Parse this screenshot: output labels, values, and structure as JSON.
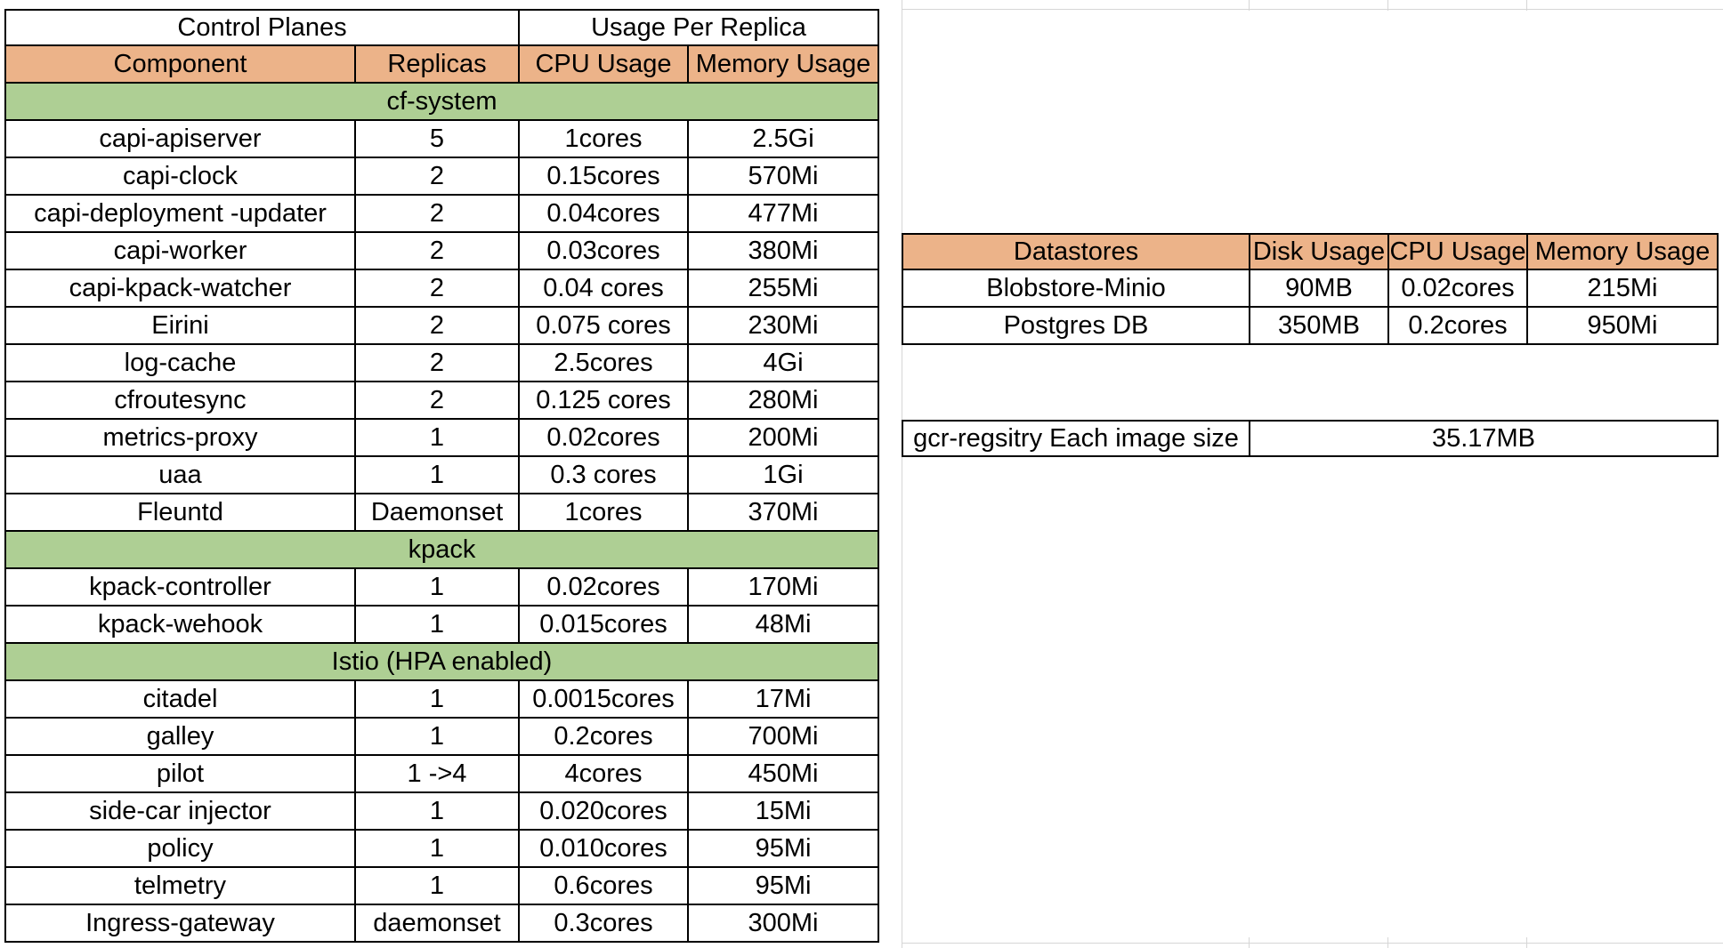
{
  "colors": {
    "header_fill": "#ecb389",
    "section_fill": "#aecf94",
    "border": "#000000",
    "gridline": "#d6d6d6"
  },
  "control_planes_table": {
    "title": "Control Planes",
    "usage_title": "Usage Per Replica",
    "columns": [
      "Component",
      "Replicas",
      "CPU Usage",
      "Memory Usage"
    ],
    "rows": [
      {
        "type": "section",
        "label": "cf-system"
      },
      {
        "type": "data",
        "cells": [
          "capi-apiserver",
          "5",
          "1cores",
          "2.5Gi"
        ]
      },
      {
        "type": "data",
        "cells": [
          "capi-clock",
          "2",
          "0.15cores",
          "570Mi"
        ]
      },
      {
        "type": "data",
        "cells": [
          "capi-deployment -updater",
          "2",
          "0.04cores",
          "477Mi"
        ]
      },
      {
        "type": "data",
        "cells": [
          "capi-worker",
          "2",
          "0.03cores",
          "380Mi"
        ]
      },
      {
        "type": "data",
        "cells": [
          "capi-kpack-watcher",
          "2",
          "0.04 cores",
          "255Mi"
        ]
      },
      {
        "type": "data",
        "cells": [
          "Eirini",
          "2",
          "0.075 cores",
          "230Mi"
        ]
      },
      {
        "type": "data",
        "cells": [
          "log-cache",
          "2",
          "2.5cores",
          "4Gi"
        ]
      },
      {
        "type": "data",
        "cells": [
          "cfroutesync",
          "2",
          "0.125 cores",
          "280Mi"
        ]
      },
      {
        "type": "data",
        "cells": [
          "metrics-proxy",
          "1",
          "0.02cores",
          "200Mi"
        ]
      },
      {
        "type": "data",
        "cells": [
          "uaa",
          "1",
          "0.3 cores",
          "1Gi"
        ]
      },
      {
        "type": "data",
        "cells": [
          "Fleuntd",
          "Daemonset",
          "1cores",
          "370Mi"
        ]
      },
      {
        "type": "section",
        "label": "kpack"
      },
      {
        "type": "data",
        "cells": [
          "kpack-controller",
          "1",
          "0.02cores",
          "170Mi"
        ]
      },
      {
        "type": "data",
        "cells": [
          "kpack-wehook",
          "1",
          "0.015cores",
          "48Mi"
        ]
      },
      {
        "type": "section",
        "label": "Istio (HPA enabled)"
      },
      {
        "type": "data",
        "cells": [
          "citadel",
          "1",
          "0.0015cores",
          "17Mi"
        ]
      },
      {
        "type": "data",
        "cells": [
          "galley",
          "1",
          "0.2cores",
          "700Mi"
        ]
      },
      {
        "type": "data",
        "cells": [
          "pilot",
          "1 ->4",
          "4cores",
          "450Mi"
        ]
      },
      {
        "type": "data",
        "cells": [
          "side-car injector",
          "1",
          "0.020cores",
          "15Mi"
        ]
      },
      {
        "type": "data",
        "cells": [
          "policy",
          "1",
          "0.010cores",
          "95Mi"
        ]
      },
      {
        "type": "data",
        "cells": [
          "telmetry",
          "1",
          "0.6cores",
          "95Mi"
        ]
      },
      {
        "type": "data",
        "cells": [
          "Ingress-gateway",
          "daemonset",
          "0.3cores",
          "300Mi"
        ]
      }
    ]
  },
  "datastores_table": {
    "columns": [
      "Datastores",
      "Disk Usage",
      "CPU Usage",
      "Memory Usage"
    ],
    "rows": [
      [
        "Blobstore-Minio",
        "90MB",
        "0.02cores",
        "215Mi"
      ],
      [
        "Postgres DB",
        "350MB",
        "0.2cores",
        "950Mi"
      ]
    ]
  },
  "registry": {
    "label": "gcr-regsitry Each image size",
    "value": "35.17MB"
  }
}
